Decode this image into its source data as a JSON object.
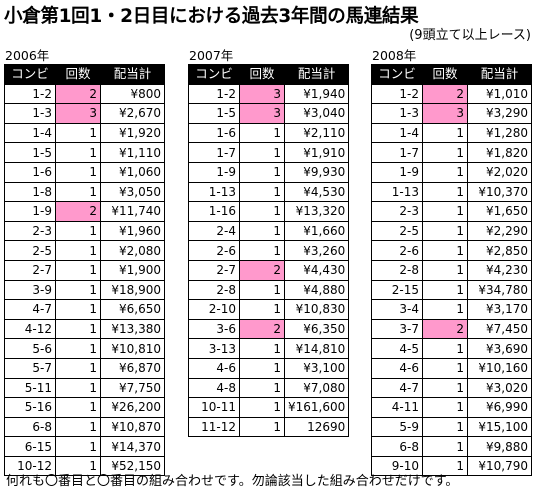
{
  "title": "小倉第1回1・2日目における過去3年間の馬連結果",
  "subtitle": "(9頭立て以上レース)",
  "headers": [
    "コンビ",
    "回数",
    "配当計"
  ],
  "highlight_color": "#ff99cc",
  "footer": "何れも〇番目と〇番目の組み合わせです。勿論該当した組み合わせだけです。",
  "years": [
    {
      "label": "2006年",
      "rows": [
        {
          "combo": "1-2",
          "count": "2",
          "payout": "¥800",
          "hl": true
        },
        {
          "combo": "1-3",
          "count": "3",
          "payout": "¥2,670",
          "hl": true
        },
        {
          "combo": "1-4",
          "count": "1",
          "payout": "¥1,920",
          "hl": false
        },
        {
          "combo": "1-5",
          "count": "1",
          "payout": "¥1,110",
          "hl": false
        },
        {
          "combo": "1-6",
          "count": "1",
          "payout": "¥1,060",
          "hl": false
        },
        {
          "combo": "1-8",
          "count": "1",
          "payout": "¥3,050",
          "hl": false
        },
        {
          "combo": "1-9",
          "count": "2",
          "payout": "¥11,740",
          "hl": true
        },
        {
          "combo": "2-3",
          "count": "1",
          "payout": "¥1,960",
          "hl": false
        },
        {
          "combo": "2-5",
          "count": "1",
          "payout": "¥2,080",
          "hl": false
        },
        {
          "combo": "2-7",
          "count": "1",
          "payout": "¥1,900",
          "hl": false
        },
        {
          "combo": "3-9",
          "count": "1",
          "payout": "¥18,900",
          "hl": false
        },
        {
          "combo": "4-7",
          "count": "1",
          "payout": "¥6,650",
          "hl": false
        },
        {
          "combo": "4-12",
          "count": "1",
          "payout": "¥13,380",
          "hl": false
        },
        {
          "combo": "5-6",
          "count": "1",
          "payout": "¥10,810",
          "hl": false
        },
        {
          "combo": "5-7",
          "count": "1",
          "payout": "¥6,870",
          "hl": false
        },
        {
          "combo": "5-11",
          "count": "1",
          "payout": "¥7,750",
          "hl": false
        },
        {
          "combo": "5-16",
          "count": "1",
          "payout": "¥26,200",
          "hl": false
        },
        {
          "combo": "6-8",
          "count": "1",
          "payout": "¥10,870",
          "hl": false
        },
        {
          "combo": "6-15",
          "count": "1",
          "payout": "¥14,370",
          "hl": false
        },
        {
          "combo": "10-12",
          "count": "1",
          "payout": "¥52,150",
          "hl": false
        }
      ]
    },
    {
      "label": "2007年",
      "rows": [
        {
          "combo": "1-2",
          "count": "3",
          "payout": "¥1,940",
          "hl": true
        },
        {
          "combo": "1-5",
          "count": "3",
          "payout": "¥3,040",
          "hl": true
        },
        {
          "combo": "1-6",
          "count": "1",
          "payout": "¥2,110",
          "hl": false
        },
        {
          "combo": "1-7",
          "count": "1",
          "payout": "¥1,910",
          "hl": false
        },
        {
          "combo": "1-9",
          "count": "1",
          "payout": "¥9,930",
          "hl": false
        },
        {
          "combo": "1-13",
          "count": "1",
          "payout": "¥4,530",
          "hl": false
        },
        {
          "combo": "1-16",
          "count": "1",
          "payout": "¥13,320",
          "hl": false
        },
        {
          "combo": "2-4",
          "count": "1",
          "payout": "¥1,660",
          "hl": false
        },
        {
          "combo": "2-6",
          "count": "1",
          "payout": "¥3,260",
          "hl": false
        },
        {
          "combo": "2-7",
          "count": "2",
          "payout": "¥4,430",
          "hl": true
        },
        {
          "combo": "2-8",
          "count": "1",
          "payout": "¥4,880",
          "hl": false
        },
        {
          "combo": "2-10",
          "count": "1",
          "payout": "¥10,830",
          "hl": false
        },
        {
          "combo": "3-6",
          "count": "2",
          "payout": "¥6,350",
          "hl": true
        },
        {
          "combo": "3-13",
          "count": "1",
          "payout": "¥14,810",
          "hl": false
        },
        {
          "combo": "4-6",
          "count": "1",
          "payout": "¥3,100",
          "hl": false
        },
        {
          "combo": "4-8",
          "count": "1",
          "payout": "¥7,080",
          "hl": false
        },
        {
          "combo": "10-11",
          "count": "1",
          "payout": "¥161,600",
          "hl": false
        },
        {
          "combo": "11-12",
          "count": "1",
          "payout": "12690",
          "hl": false
        }
      ]
    },
    {
      "label": "2008年",
      "rows": [
        {
          "combo": "1-2",
          "count": "2",
          "payout": "¥1,010",
          "hl": true
        },
        {
          "combo": "1-3",
          "count": "3",
          "payout": "¥3,290",
          "hl": true
        },
        {
          "combo": "1-4",
          "count": "1",
          "payout": "¥1,280",
          "hl": false
        },
        {
          "combo": "1-7",
          "count": "1",
          "payout": "¥1,820",
          "hl": false
        },
        {
          "combo": "1-9",
          "count": "1",
          "payout": "¥2,020",
          "hl": false
        },
        {
          "combo": "1-13",
          "count": "1",
          "payout": "¥10,370",
          "hl": false
        },
        {
          "combo": "2-3",
          "count": "1",
          "payout": "¥1,650",
          "hl": false
        },
        {
          "combo": "2-5",
          "count": "1",
          "payout": "¥2,290",
          "hl": false
        },
        {
          "combo": "2-6",
          "count": "1",
          "payout": "¥2,850",
          "hl": false
        },
        {
          "combo": "2-8",
          "count": "1",
          "payout": "¥4,230",
          "hl": false
        },
        {
          "combo": "2-15",
          "count": "1",
          "payout": "¥34,780",
          "hl": false
        },
        {
          "combo": "3-4",
          "count": "1",
          "payout": "¥3,170",
          "hl": false
        },
        {
          "combo": "3-7",
          "count": "2",
          "payout": "¥7,450",
          "hl": true
        },
        {
          "combo": "4-5",
          "count": "1",
          "payout": "¥3,690",
          "hl": false
        },
        {
          "combo": "4-6",
          "count": "1",
          "payout": "¥10,160",
          "hl": false
        },
        {
          "combo": "4-7",
          "count": "1",
          "payout": "¥3,020",
          "hl": false
        },
        {
          "combo": "4-11",
          "count": "1",
          "payout": "¥6,990",
          "hl": false
        },
        {
          "combo": "5-9",
          "count": "1",
          "payout": "¥15,100",
          "hl": false
        },
        {
          "combo": "6-8",
          "count": "1",
          "payout": "¥9,880",
          "hl": false
        },
        {
          "combo": "9-10",
          "count": "1",
          "payout": "¥10,790",
          "hl": false
        }
      ]
    }
  ]
}
